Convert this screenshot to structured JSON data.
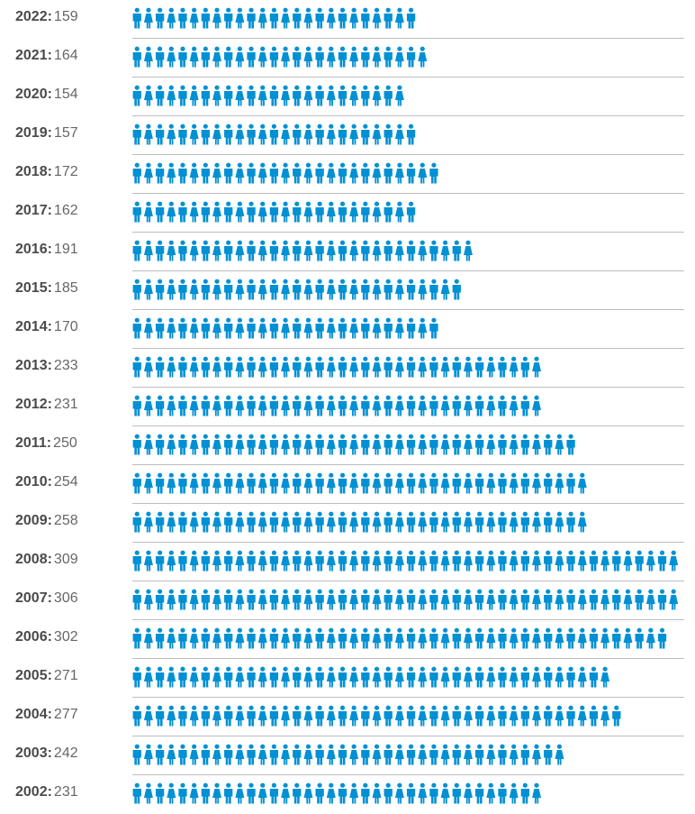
{
  "chart_data": {
    "type": "bar",
    "title": "",
    "xlabel": "",
    "ylabel": "",
    "icon": "person-icon",
    "icon_color": "#0090d4",
    "rows": [
      {
        "year": "2022",
        "sep": ":",
        "value": 159
      },
      {
        "year": "2021",
        "sep": ":",
        "value": 164
      },
      {
        "year": "2020",
        "sep": ":",
        "value": 154
      },
      {
        "year": "2019",
        "sep": ":",
        "value": 157
      },
      {
        "year": "2018",
        "sep": ":",
        "value": 172
      },
      {
        "year": "2017",
        "sep": ":",
        "value": 162
      },
      {
        "year": "2016",
        "sep": ":",
        "value": 191
      },
      {
        "year": "2015",
        "sep": ":",
        "value": 185
      },
      {
        "year": "2014",
        "sep": ":",
        "value": 170
      },
      {
        "year": "2013",
        "sep": ":",
        "value": 233
      },
      {
        "year": "2012",
        "sep": ":",
        "value": 231
      },
      {
        "year": "2011",
        "sep": ":",
        "value": 250
      },
      {
        "year": "2010",
        "sep": ":",
        "value": 254
      },
      {
        "year": "2009",
        "sep": ":",
        "value": 258
      },
      {
        "year": "2008",
        "sep": ":",
        "value": 309
      },
      {
        "year": "2007",
        "sep": ":",
        "value": 306
      },
      {
        "year": "2006",
        "sep": ":",
        "value": 302
      },
      {
        "year": "2005",
        "sep": ":",
        "value": 271
      },
      {
        "year": "2004",
        "sep": ":",
        "value": 277
      },
      {
        "year": "2003",
        "sep": ":",
        "value": 242
      },
      {
        "year": "2002",
        "sep": ":",
        "value": 231
      }
    ]
  }
}
